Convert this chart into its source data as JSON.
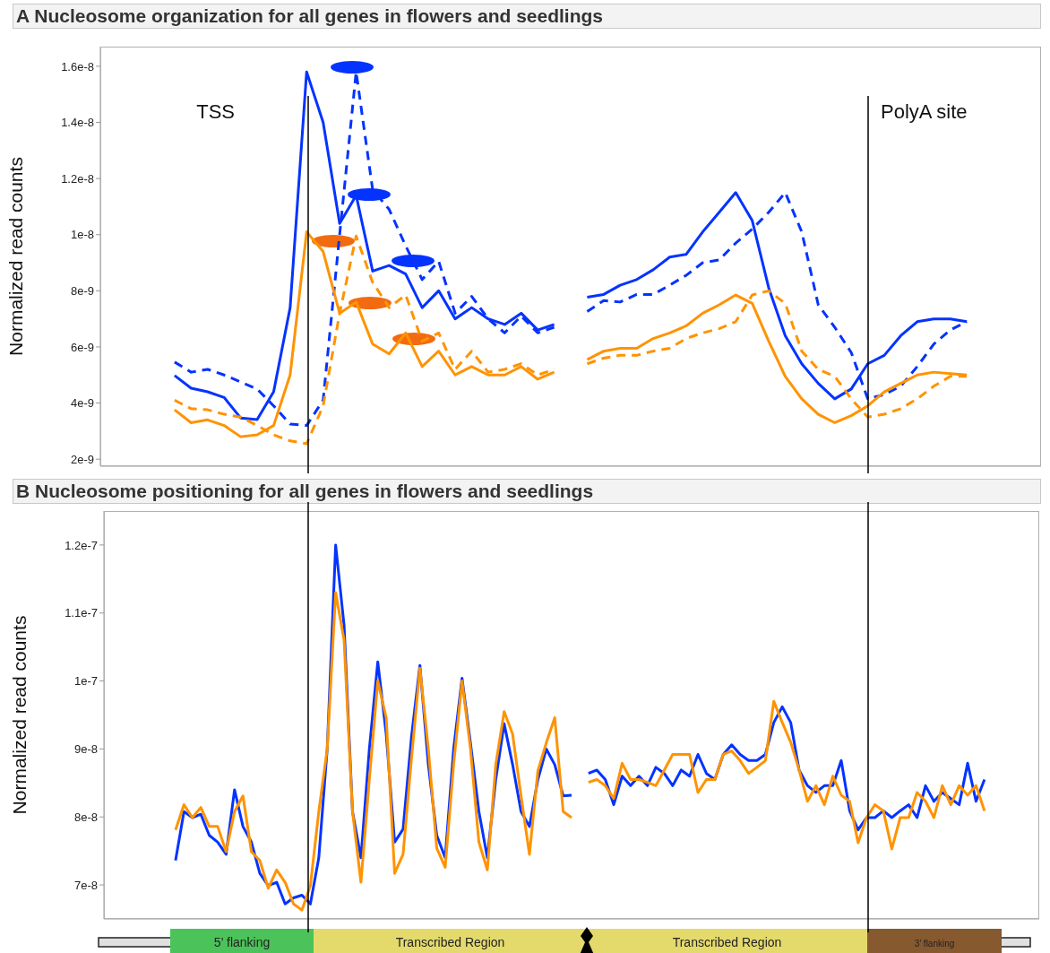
{
  "chart_data": [
    {
      "type": "line",
      "title": "A Nucleosome organization for all genes in flowers and seedlings",
      "ylabel": "Normalized read counts",
      "tick_labels": "y",
      "categories": [
        null,
        null,
        null,
        null,
        null,
        null,
        null,
        null,
        null,
        null,
        null,
        null,
        null,
        null,
        null,
        null,
        null,
        null,
        null,
        null,
        null,
        null,
        null,
        null,
        null,
        null,
        null,
        null,
        null,
        null,
        null,
        null,
        null,
        null,
        null,
        null,
        null,
        null,
        null,
        null,
        null,
        null,
        null,
        null,
        null,
        null,
        null,
        null,
        null,
        null,
        null,
        null,
        null,
        null,
        null,
        null,
        null
      ],
      "ylim": [
        1.75e-09,
        1.67e-08
      ],
      "yticks": [
        {
          "value": 2e-09,
          "label": "2e-9"
        },
        {
          "value": 4e-09,
          "label": "4e-9"
        },
        {
          "value": 6e-09,
          "label": "6e-9"
        },
        {
          "value": 8e-09,
          "label": "8e-9"
        },
        {
          "value": 1e-08,
          "label": "1e-8"
        },
        {
          "value": 1.2e-08,
          "label": "1.2e-8"
        },
        {
          "value": 1.4e-08,
          "label": "1.4e-8"
        },
        {
          "value": 1.6e-08,
          "label": "1.6e-8"
        }
      ],
      "annotations": [
        "TSS",
        "PolyA site"
      ],
      "series": [
        {
          "color": "#0433ff",
          "line_style": "solid",
          "values": [
            null,
            null,
            null,
            null,
            4.98e-09,
            4.53e-09,
            4.4e-09,
            4.2e-09,
            3.47e-09,
            3.41e-09,
            4.4e-09,
            7.4e-09,
            1.58e-08,
            1.4e-08,
            1.04e-08,
            1.14e-08,
            8.7e-09,
            8.9e-09,
            8.6e-09,
            7.4e-09,
            8e-09,
            7e-09,
            7.4e-09,
            7e-09,
            6.8e-09,
            7.2e-09,
            6.6e-09,
            6.8e-09,
            null,
            7.77e-09,
            7.87e-09,
            8.2e-09,
            8.4e-09,
            8.75e-09,
            9.2e-09,
            9.3e-09,
            1.01e-08,
            1.08e-08,
            1.15e-08,
            1.05e-08,
            8.1e-09,
            6.4e-09,
            5.4e-09,
            4.7e-09,
            4.15e-09,
            4.5e-09,
            5.4e-09,
            5.7e-09,
            6.4e-09,
            6.9e-09,
            7e-09,
            7e-09,
            6.9e-09,
            null,
            null,
            null,
            null
          ]
        },
        {
          "color": "#0433ff",
          "line_style": "dashed",
          "values": [
            null,
            null,
            null,
            null,
            5.46e-09,
            5.1e-09,
            5.2e-09,
            5e-09,
            4.75e-09,
            4.5e-09,
            3.9e-09,
            3.25e-09,
            3.2e-09,
            4.1e-09,
            1e-08,
            1.58e-08,
            1.16e-08,
            1.09e-08,
            9.6e-09,
            8.4e-09,
            9.05e-09,
            7.2e-09,
            7.8e-09,
            7e-09,
            6.5e-09,
            7.1e-09,
            6.5e-09,
            6.7e-09,
            null,
            7.26e-09,
            7.65e-09,
            7.6e-09,
            7.87e-09,
            7.87e-09,
            8.2e-09,
            8.55e-09,
            9e-09,
            9.1e-09,
            9.7e-09,
            1.02e-08,
            1.08e-08,
            1.15e-08,
            1.01e-08,
            7.5e-09,
            6.7e-09,
            5.8e-09,
            4.15e-09,
            4.3e-09,
            4.6e-09,
            5.3e-09,
            6.1e-09,
            6.6e-09,
            6.9e-09,
            null,
            null,
            null,
            null
          ]
        },
        {
          "color": "#ff9300",
          "line_style": "solid",
          "values": [
            null,
            null,
            null,
            null,
            3.76e-09,
            3.3e-09,
            3.4e-09,
            3.2e-09,
            2.8e-09,
            2.87e-09,
            3.2e-09,
            5e-09,
            1.01e-08,
            9.4e-09,
            7.2e-09,
            7.6e-09,
            6.1e-09,
            5.75e-09,
            6.5e-09,
            5.3e-09,
            5.85e-09,
            5e-09,
            5.3e-09,
            5e-09,
            5e-09,
            5.3e-09,
            4.85e-09,
            5.1e-09,
            null,
            5.55e-09,
            5.85e-09,
            5.95e-09,
            5.95e-09,
            6.3e-09,
            6.5e-09,
            6.75e-09,
            7.2e-09,
            7.5e-09,
            7.85e-09,
            7.55e-09,
            6.2e-09,
            4.95e-09,
            4.15e-09,
            3.6e-09,
            3.3e-09,
            3.55e-09,
            3.9e-09,
            4.4e-09,
            4.7e-09,
            5e-09,
            5.1e-09,
            5.05e-09,
            5e-09,
            null,
            null,
            null,
            null
          ]
        },
        {
          "color": "#ff9300",
          "line_style": "dashed",
          "values": [
            null,
            null,
            null,
            null,
            4.1e-09,
            3.8e-09,
            3.76e-09,
            3.6e-09,
            3.5e-09,
            3.2e-09,
            2.87e-09,
            2.65e-09,
            2.55e-09,
            3.9e-09,
            7.2e-09,
            9.95e-09,
            8.3e-09,
            7.4e-09,
            7.85e-09,
            6.2e-09,
            6.5e-09,
            5.2e-09,
            5.85e-09,
            5.1e-09,
            5.2e-09,
            5.4e-09,
            5e-09,
            5.2e-09,
            null,
            5.4e-09,
            5.6e-09,
            5.7e-09,
            5.7e-09,
            5.85e-09,
            5.95e-09,
            6.3e-09,
            6.5e-09,
            6.65e-09,
            6.9e-09,
            7.85e-09,
            8e-09,
            7.55e-09,
            5.85e-09,
            5.2e-09,
            4.95e-09,
            4.15e-09,
            3.5e-09,
            3.6e-09,
            3.8e-09,
            4.15e-09,
            4.6e-09,
            4.95e-09,
            4.95e-09,
            null,
            null,
            null,
            null
          ]
        }
      ]
    },
    {
      "type": "line",
      "title": "B Nucleosome positioning for all genes in flowers and seedlings",
      "ylabel": "Normalized read counts",
      "tick_labels": "y",
      "categories": [
        null,
        null,
        null,
        null,
        null,
        null,
        null,
        null,
        null,
        null,
        null,
        null,
        null,
        null,
        null,
        null,
        null,
        null,
        null,
        null,
        null,
        null,
        null,
        null,
        null,
        null,
        null,
        null,
        null,
        null,
        null,
        null,
        null,
        null,
        null,
        null,
        null,
        null,
        null,
        null,
        null,
        null,
        null,
        null,
        null,
        null,
        null,
        null,
        null,
        null,
        null,
        null,
        null,
        null,
        null,
        null,
        null,
        null,
        null,
        null,
        null,
        null,
        null,
        null,
        null,
        null,
        null,
        null,
        null,
        null,
        null,
        null,
        null,
        null,
        null,
        null,
        null,
        null,
        null,
        null,
        null,
        null,
        null,
        null,
        null,
        null,
        null,
        null,
        null,
        null,
        null,
        null,
        null,
        null,
        null,
        null,
        null,
        null,
        null,
        null,
        null,
        null,
        null,
        null,
        null,
        null,
        null,
        null,
        null,
        null,
        null
      ],
      "ylim": [
        6.5e-08,
        1.25e-07
      ],
      "yticks": [
        {
          "value": 7e-08,
          "label": "7e-8"
        },
        {
          "value": 8e-08,
          "label": "8e-8"
        },
        {
          "value": 9e-08,
          "label": "9e-8"
        },
        {
          "value": 1e-07,
          "label": "1e-7"
        },
        {
          "value": 1.1e-07,
          "label": "1.1e-7"
        },
        {
          "value": 1.2e-07,
          "label": "1.2e-7"
        }
      ],
      "annotations": [
        "5’ flanking",
        "Transcribed Region",
        "Transcribed Region",
        "3’ flanking"
      ],
      "series": [
        {
          "color": "#0433ff",
          "values": [
            null,
            null,
            null,
            null,
            null,
            null,
            null,
            null,
            7.36e-08,
            8.08e-08,
            7.99e-08,
            8.04e-08,
            7.73e-08,
            7.63e-08,
            7.45e-08,
            8.4e-08,
            7.86e-08,
            7.63e-08,
            7.17e-08,
            6.99e-08,
            7.04e-08,
            6.72e-08,
            6.81e-08,
            6.85e-08,
            6.72e-08,
            7.4e-08,
            9e-08,
            1.2e-07,
            1.082e-07,
            8.08e-08,
            7.4e-08,
            9e-08,
            1.028e-07,
            9.22e-08,
            7.63e-08,
            7.82e-08,
            9.18e-08,
            1.023e-07,
            8.77e-08,
            7.73e-08,
            7.4e-08,
            9e-08,
            1.004e-07,
            9.09e-08,
            8.08e-08,
            7.4e-08,
            8.55e-08,
            9.37e-08,
            8.77e-08,
            8.08e-08,
            7.86e-08,
            8.55e-08,
            9e-08,
            8.77e-08,
            8.31e-08,
            8.32e-08,
            null,
            8.64e-08,
            8.69e-08,
            8.55e-08,
            8.18e-08,
            8.6e-08,
            8.46e-08,
            8.6e-08,
            8.46e-08,
            8.73e-08,
            8.64e-08,
            8.46e-08,
            8.69e-08,
            8.6e-08,
            8.92e-08,
            8.64e-08,
            8.55e-08,
            8.92e-08,
            9.06e-08,
            8.92e-08,
            8.83e-08,
            8.83e-08,
            8.92e-08,
            9.39e-08,
            9.62e-08,
            9.39e-08,
            8.69e-08,
            8.46e-08,
            8.36e-08,
            8.46e-08,
            8.46e-08,
            8.83e-08,
            8.09e-08,
            7.81e-08,
            7.99e-08,
            7.99e-08,
            8.09e-08,
            7.99e-08,
            8.09e-08,
            8.18e-08,
            7.99e-08,
            8.46e-08,
            8.23e-08,
            8.36e-08,
            8.27e-08,
            8.18e-08,
            8.79e-08,
            8.23e-08,
            8.55e-08,
            null,
            null,
            null,
            null,
            null,
            null
          ]
        },
        {
          "color": "#ff9300",
          "values": [
            null,
            null,
            null,
            null,
            null,
            null,
            null,
            null,
            7.81e-08,
            8.18e-08,
            7.99e-08,
            8.14e-08,
            7.86e-08,
            7.86e-08,
            7.49e-08,
            8.08e-08,
            8.31e-08,
            7.49e-08,
            7.36e-08,
            6.95e-08,
            7.22e-08,
            7.04e-08,
            6.72e-08,
            6.63e-08,
            6.99e-08,
            8.08e-08,
            9e-08,
            1.13e-07,
            1.06e-07,
            8.08e-08,
            7.04e-08,
            8.55e-08,
            1e-07,
            9.46e-08,
            7.17e-08,
            7.45e-08,
            8.86e-08,
            1.019e-07,
            9e-08,
            7.54e-08,
            7.26e-08,
            8.77e-08,
            1e-07,
            9e-08,
            7.63e-08,
            7.22e-08,
            8.77e-08,
            9.55e-08,
            9.22e-08,
            8.31e-08,
            7.45e-08,
            8.68e-08,
            9.09e-08,
            9.46e-08,
            8.08e-08,
            7.99e-08,
            null,
            8.51e-08,
            8.55e-08,
            8.46e-08,
            8.27e-08,
            8.79e-08,
            8.55e-08,
            8.55e-08,
            8.51e-08,
            8.46e-08,
            8.69e-08,
            8.92e-08,
            8.92e-08,
            8.92e-08,
            8.36e-08,
            8.55e-08,
            8.55e-08,
            8.92e-08,
            8.97e-08,
            8.83e-08,
            8.64e-08,
            8.73e-08,
            8.83e-08,
            9.7e-08,
            9.39e-08,
            9.1e-08,
            8.69e-08,
            8.23e-08,
            8.46e-08,
            8.18e-08,
            8.6e-08,
            8.32e-08,
            8.23e-08,
            7.62e-08,
            7.99e-08,
            8.18e-08,
            8.09e-08,
            7.53e-08,
            7.99e-08,
            7.99e-08,
            8.36e-08,
            8.23e-08,
            7.99e-08,
            8.46e-08,
            8.18e-08,
            8.46e-08,
            8.32e-08,
            8.46e-08,
            8.09e-08,
            null,
            null,
            null,
            null,
            null,
            null
          ]
        }
      ]
    }
  ]
}
